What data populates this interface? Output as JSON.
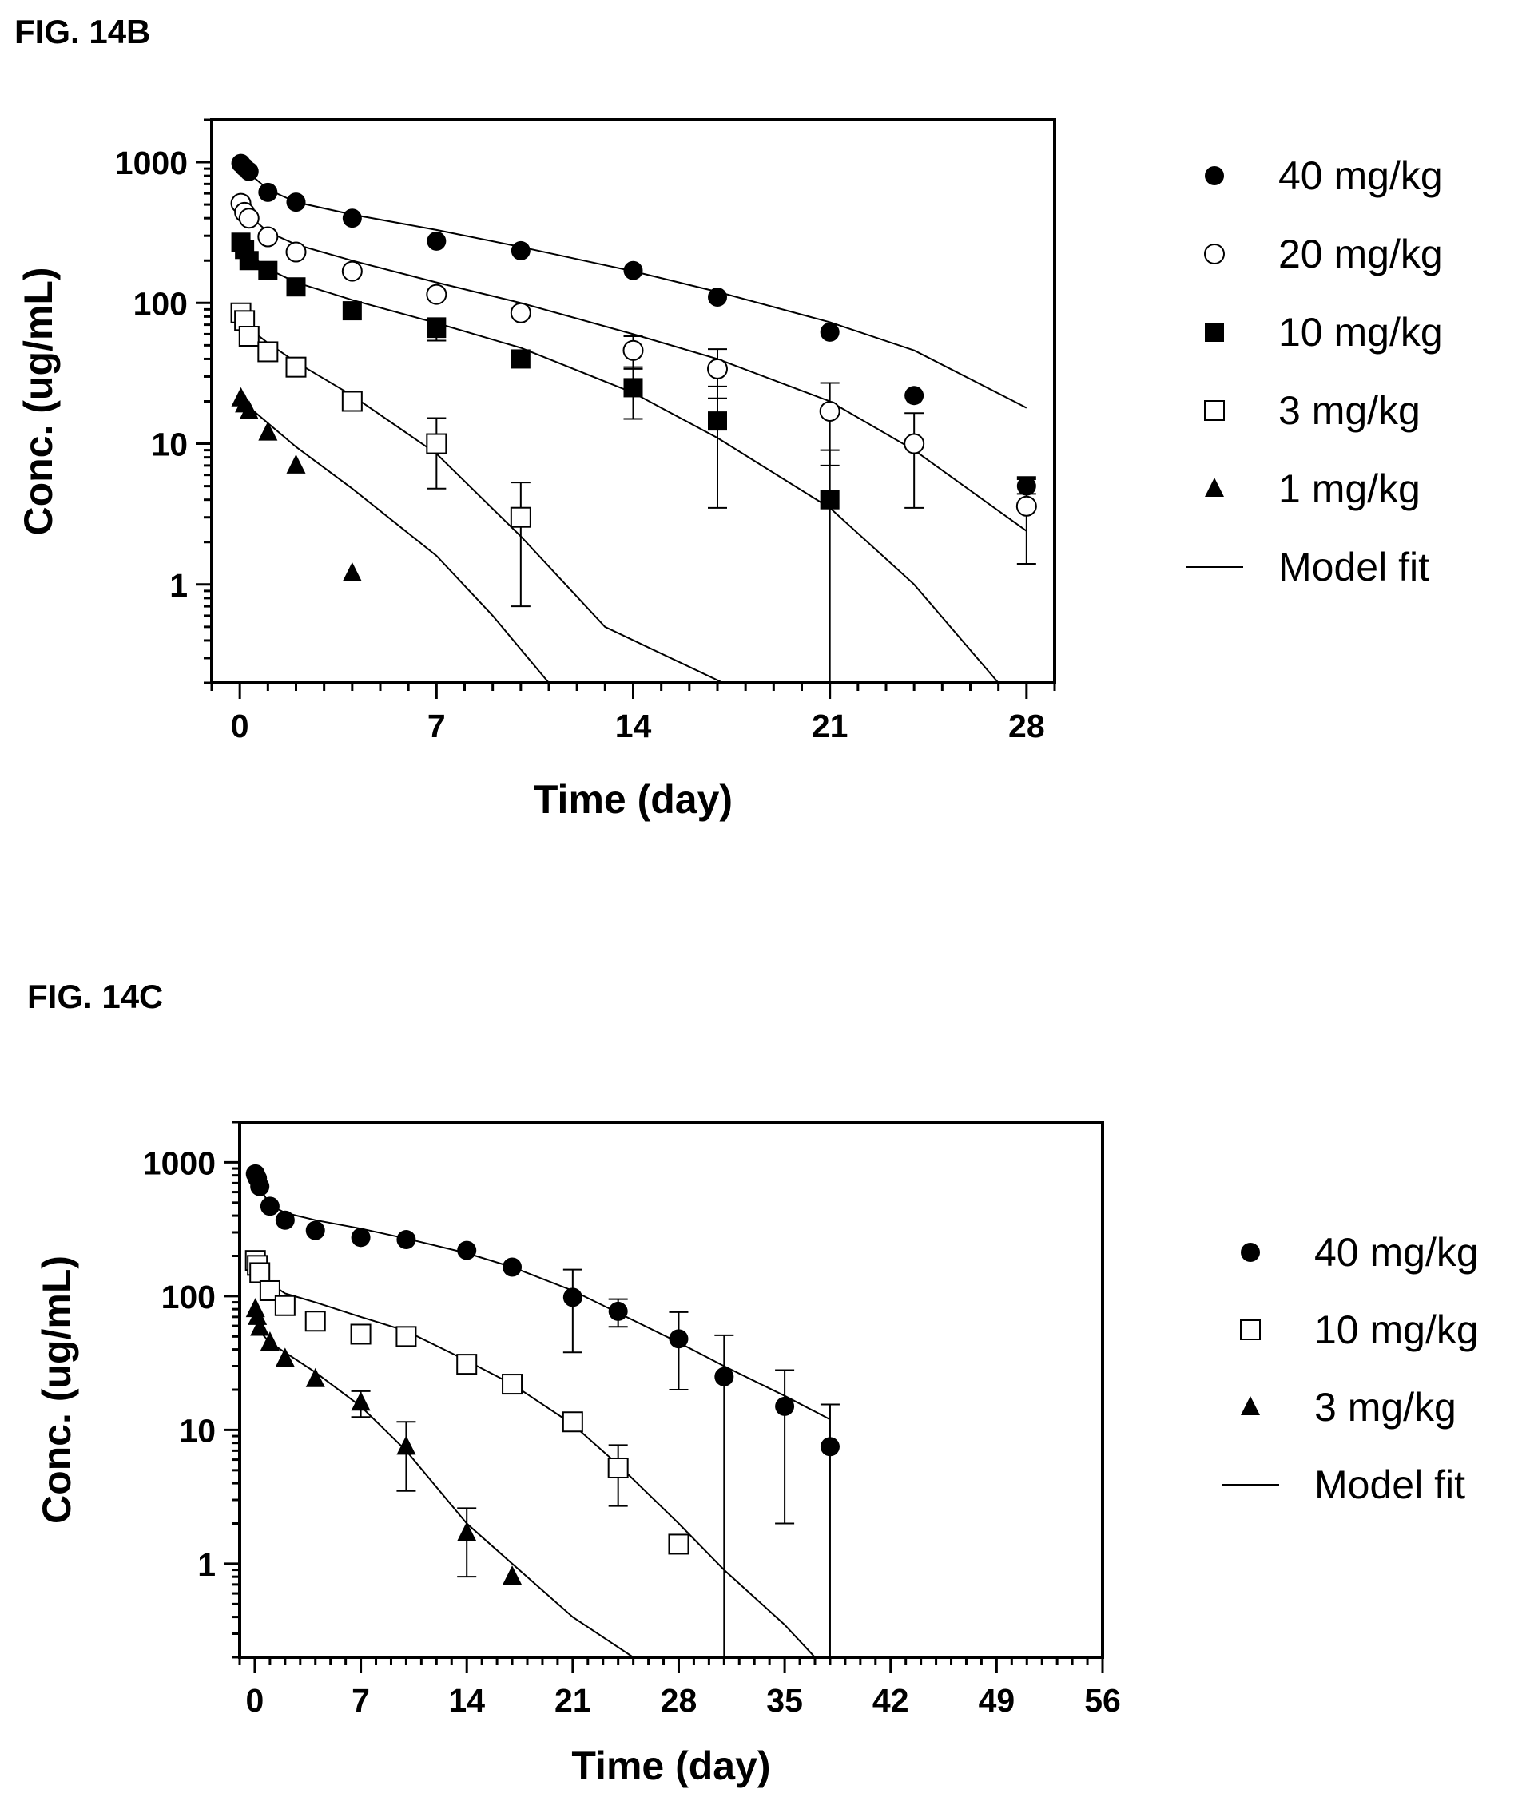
{
  "figures": [
    {
      "label": "FIG. 14B"
    },
    {
      "label": "FIG. 14C"
    }
  ],
  "chart_data": [
    {
      "type": "scatter",
      "title": "FIG. 14B",
      "xlabel": "Time (day)",
      "ylabel": "Conc. (ug/mL)",
      "xlim": [
        -1,
        29
      ],
      "ylim": [
        0.2,
        2000
      ],
      "yscale": "log",
      "x_ticks": [
        0,
        7,
        14,
        21,
        28
      ],
      "y_ticks": [
        1,
        10,
        100,
        1000
      ],
      "legend_position": "right",
      "series": [
        {
          "name": "40 mg/kg",
          "marker": "filled-circle",
          "points": [
            [
              0.04,
              980
            ],
            [
              0.17,
              920
            ],
            [
              0.33,
              860
            ],
            [
              1,
              610
            ],
            [
              2,
              520
            ],
            [
              4,
              400
            ],
            [
              7,
              275
            ],
            [
              10,
              235
            ],
            [
              14,
              170
            ],
            [
              17,
              110
            ],
            [
              21,
              62
            ],
            [
              24,
              22
            ],
            [
              28,
              5
            ]
          ],
          "error": [
            null,
            null,
            null,
            null,
            null,
            null,
            null,
            null,
            null,
            null,
            null,
            null,
            0.6
          ],
          "fit": [
            [
              0,
              1000
            ],
            [
              0.5,
              780
            ],
            [
              1,
              640
            ],
            [
              2,
              520
            ],
            [
              4,
              425
            ],
            [
              7,
              330
            ],
            [
              10,
              250
            ],
            [
              14,
              168
            ],
            [
              17,
              120
            ],
            [
              21,
              73
            ],
            [
              24,
              46
            ],
            [
              28,
              18
            ]
          ]
        },
        {
          "name": "20 mg/kg",
          "marker": "open-circle",
          "points": [
            [
              0.04,
              510
            ],
            [
              0.17,
              440
            ],
            [
              0.33,
              400
            ],
            [
              1,
              295
            ],
            [
              2,
              230
            ],
            [
              4,
              168
            ],
            [
              7,
              115
            ],
            [
              10,
              85
            ],
            [
              14,
              46
            ],
            [
              17,
              34
            ],
            [
              21,
              17
            ],
            [
              24,
              10
            ],
            [
              28,
              3.6
            ]
          ],
          "error": [
            null,
            null,
            null,
            null,
            null,
            null,
            null,
            null,
            12,
            13,
            10,
            6.5,
            2.2
          ],
          "fit": [
            [
              0,
              520
            ],
            [
              0.5,
              390
            ],
            [
              1,
              320
            ],
            [
              2,
              260
            ],
            [
              4,
              200
            ],
            [
              7,
              140
            ],
            [
              10,
              100
            ],
            [
              14,
              60
            ],
            [
              17,
              40
            ],
            [
              21,
              20
            ],
            [
              24,
              9
            ],
            [
              28,
              2.4
            ]
          ]
        },
        {
          "name": "10 mg/kg",
          "marker": "filled-square",
          "points": [
            [
              0.04,
              270
            ],
            [
              0.17,
              240
            ],
            [
              0.33,
              200
            ],
            [
              1,
              170
            ],
            [
              2,
              130
            ],
            [
              4,
              88
            ],
            [
              7,
              66
            ],
            [
              10,
              40
            ],
            [
              14,
              25
            ],
            [
              17,
              14.5
            ],
            [
              21,
              4
            ]
          ],
          "error": [
            null,
            null,
            null,
            null,
            null,
            null,
            12,
            null,
            10,
            11,
            5
          ],
          "fit": [
            [
              0,
              270
            ],
            [
              0.5,
              210
            ],
            [
              1,
              175
            ],
            [
              2,
              140
            ],
            [
              4,
              105
            ],
            [
              7,
              72
            ],
            [
              10,
              48
            ],
            [
              14,
              23
            ],
            [
              17,
              11
            ],
            [
              21,
              3.5
            ],
            [
              24,
              1
            ],
            [
              27,
              0.2
            ]
          ]
        },
        {
          "name": "3 mg/kg",
          "marker": "open-square",
          "points": [
            [
              0.04,
              85
            ],
            [
              0.17,
              75
            ],
            [
              0.33,
              58
            ],
            [
              1,
              45
            ],
            [
              2,
              35
            ],
            [
              4,
              20
            ],
            [
              7,
              10
            ],
            [
              10,
              3
            ]
          ],
          "error": [
            null,
            null,
            null,
            null,
            null,
            null,
            5.2,
            2.3
          ],
          "fit": [
            [
              0,
              80
            ],
            [
              0.5,
              62
            ],
            [
              1,
              52
            ],
            [
              2,
              38
            ],
            [
              4,
              22
            ],
            [
              7,
              8.5
            ],
            [
              10,
              2.2
            ],
            [
              13,
              0.5
            ],
            [
              17.2,
              0.2
            ]
          ]
        },
        {
          "name": "1 mg/kg",
          "marker": "filled-triangle",
          "points": [
            [
              0.04,
              21
            ],
            [
              0.17,
              19
            ],
            [
              0.33,
              17
            ],
            [
              1,
              12
            ],
            [
              2,
              7
            ],
            [
              4,
              1.2
            ]
          ],
          "error": [
            null,
            null,
            null,
            null,
            null,
            null
          ],
          "fit": [
            [
              0,
              22
            ],
            [
              0.5,
              17
            ],
            [
              1,
              14
            ],
            [
              2,
              9.5
            ],
            [
              4,
              4.8
            ],
            [
              7,
              1.6
            ],
            [
              9,
              0.6
            ],
            [
              11,
              0.2
            ]
          ]
        },
        {
          "name": "Model fit",
          "marker": "line"
        }
      ]
    },
    {
      "type": "scatter",
      "title": "FIG. 14C",
      "xlabel": "Time (day)",
      "ylabel": "Conc. (ug/mL)",
      "xlim": [
        -1,
        56
      ],
      "ylim": [
        0.2,
        2000
      ],
      "yscale": "log",
      "x_ticks": [
        0,
        7,
        14,
        21,
        28,
        35,
        42,
        49,
        56
      ],
      "y_ticks": [
        1,
        10,
        100,
        1000
      ],
      "legend_position": "right",
      "series": [
        {
          "name": "40 mg/kg",
          "marker": "filled-circle",
          "points": [
            [
              0.04,
              820
            ],
            [
              0.17,
              760
            ],
            [
              0.33,
              660
            ],
            [
              1,
              470
            ],
            [
              2,
              370
            ],
            [
              4,
              310
            ],
            [
              7,
              275
            ],
            [
              10,
              265
            ],
            [
              14,
              220
            ],
            [
              17,
              165
            ],
            [
              21,
              98
            ],
            [
              24,
              77
            ],
            [
              28,
              48
            ],
            [
              31,
              25
            ],
            [
              35,
              15
            ],
            [
              38,
              7.5
            ]
          ],
          "error": [
            null,
            null,
            null,
            null,
            null,
            null,
            null,
            null,
            null,
            null,
            60,
            18,
            28,
            26,
            13,
            8
          ],
          "fit": [
            [
              0,
              850
            ],
            [
              0.5,
              600
            ],
            [
              1,
              480
            ],
            [
              2,
              420
            ],
            [
              4,
              370
            ],
            [
              7,
              320
            ],
            [
              10,
              270
            ],
            [
              14,
              210
            ],
            [
              17,
              165
            ],
            [
              21,
              110
            ],
            [
              24,
              75
            ],
            [
              28,
              45
            ],
            [
              31,
              30
            ],
            [
              35,
              18
            ],
            [
              38,
              12
            ]
          ]
        },
        {
          "name": "10 mg/kg",
          "marker": "open-square",
          "points": [
            [
              0.04,
              185
            ],
            [
              0.17,
              170
            ],
            [
              0.33,
              150
            ],
            [
              1,
              110
            ],
            [
              2,
              85
            ],
            [
              4,
              65
            ],
            [
              7,
              52
            ],
            [
              10,
              50
            ],
            [
              14,
              31
            ],
            [
              17,
              22
            ],
            [
              21,
              11.5
            ],
            [
              24,
              5.2
            ],
            [
              28,
              1.4
            ]
          ],
          "error": [
            null,
            null,
            null,
            null,
            null,
            null,
            null,
            null,
            null,
            null,
            null,
            2.5,
            null
          ],
          "fit": [
            [
              0,
              190
            ],
            [
              0.5,
              140
            ],
            [
              1,
              125
            ],
            [
              2,
              105
            ],
            [
              4,
              90
            ],
            [
              7,
              70
            ],
            [
              10,
              55
            ],
            [
              14,
              33
            ],
            [
              17,
              22
            ],
            [
              21,
              11
            ],
            [
              24,
              5.5
            ],
            [
              28,
              2
            ],
            [
              31,
              0.9
            ],
            [
              35,
              0.35
            ],
            [
              37,
              0.2
            ]
          ]
        },
        {
          "name": "3 mg/kg",
          "marker": "filled-triangle",
          "points": [
            [
              0.04,
              80
            ],
            [
              0.17,
              70
            ],
            [
              0.33,
              58
            ],
            [
              1,
              45
            ],
            [
              2,
              34
            ],
            [
              4,
              24
            ],
            [
              7,
              16
            ],
            [
              10,
              7.5
            ],
            [
              14,
              1.7
            ],
            [
              17,
              0.8
            ]
          ],
          "error": [
            null,
            null,
            null,
            null,
            null,
            null,
            3.5,
            4,
            0.9,
            null
          ],
          "fit": [
            [
              0,
              80
            ],
            [
              0.5,
              52
            ],
            [
              1,
              45
            ],
            [
              2,
              38
            ],
            [
              4,
              27
            ],
            [
              7,
              15
            ],
            [
              10,
              7
            ],
            [
              14,
              2
            ],
            [
              17,
              1
            ],
            [
              21,
              0.4
            ],
            [
              25,
              0.2
            ]
          ]
        },
        {
          "name": "Model fit",
          "marker": "line"
        }
      ]
    }
  ]
}
